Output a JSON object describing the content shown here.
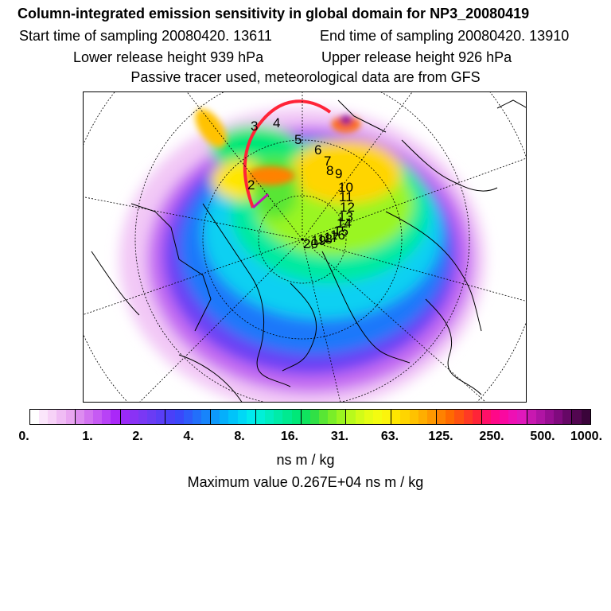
{
  "header": {
    "title": "Column-integrated emission sensitivity in global domain for NP3_20080419",
    "start_time": "Start time of sampling 20080420. 13611",
    "end_time": "End time of sampling 20080420. 13910",
    "lower_release": "Lower release height  939 hPa",
    "upper_release": "Upper release height  926 hPa",
    "tracer_note": "Passive tracer used, meteorological data are from GFS"
  },
  "map": {
    "projection": "polar stereographic (north pole)",
    "trajectory_labels": [
      "2",
      "3",
      "4",
      "5",
      "6",
      "7",
      "8",
      "9",
      "10",
      "11",
      "12",
      "13",
      "14",
      "15",
      "16",
      "17",
      "18",
      "19",
      "20"
    ]
  },
  "colorbar": {
    "ticks": [
      "0.",
      "1.",
      "2.",
      "4.",
      "8.",
      "16.",
      "31.",
      "63.",
      "125.",
      "250.",
      "500.",
      "1000."
    ],
    "colors": [
      "#ffffff",
      "#fbe6fb",
      "#f7d2f7",
      "#f0bcf4",
      "#e9a6f1",
      "#dd8cf0",
      "#d272f0",
      "#c65af3",
      "#b842f6",
      "#aa28f8",
      "#9a2af7",
      "#8a32f5",
      "#7a38f4",
      "#6a3cf4",
      "#5a3ef6",
      "#4a40f8",
      "#3a48fa",
      "#2e5bfa",
      "#226ffa",
      "#1784fb",
      "#0d99fb",
      "#05affb",
      "#00c4fa",
      "#00d8f6",
      "#00eaee",
      "#00f0d8",
      "#00eec0",
      "#00eca8",
      "#00ea90",
      "#00e878",
      "#10e45e",
      "#30e046",
      "#58e634",
      "#7aee28",
      "#9af520",
      "#b8fa1c",
      "#d2fc18",
      "#e6fd14",
      "#f4fc10",
      "#fbf40c",
      "#ffe600",
      "#ffd500",
      "#ffc200",
      "#ffae00",
      "#ff9800",
      "#ff8200",
      "#ff6a00",
      "#ff5210",
      "#ff3a24",
      "#ff2438",
      "#ff1068",
      "#ff0888",
      "#fa08a0",
      "#ee10b4",
      "#e018bc",
      "#c818b0",
      "#b014a4",
      "#980e92",
      "#800a7e",
      "#660866",
      "#520650",
      "#3a043a"
    ],
    "unit": "ns m / kg"
  },
  "footer": {
    "max_value": "Maximum value  0.267E+04 ns m / kg"
  }
}
